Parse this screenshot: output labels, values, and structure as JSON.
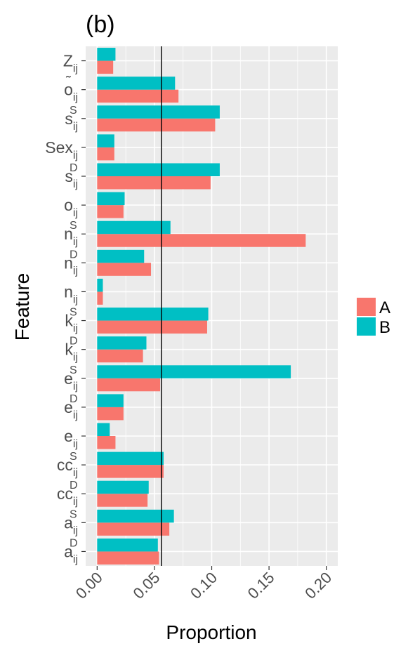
{
  "chart_data": {
    "type": "bar",
    "orientation": "horizontal",
    "title": "(b)",
    "xlabel": "Proportion",
    "ylabel": "Feature",
    "xlim": [
      -0.01,
      0.21
    ],
    "xticks": [
      "0.00",
      "0.05",
      "0.10",
      "0.15",
      "0.20"
    ],
    "reference_line": 0.056,
    "legend_position": "right",
    "grid": true,
    "colors": {
      "A": "#F8766D",
      "B": "#00BFC4",
      "panel": "#EBEBEB",
      "grid": "#ffffff"
    },
    "categories": [
      {
        "base": "Z",
        "sup": "",
        "tilde": false
      },
      {
        "base": "o",
        "sup": "",
        "tilde": true
      },
      {
        "base": "s",
        "sup": "S",
        "tilde": false
      },
      {
        "base": "Sex",
        "sup": "",
        "tilde": false
      },
      {
        "base": "s",
        "sup": "D",
        "tilde": false
      },
      {
        "base": "o",
        "sup": "",
        "tilde": false
      },
      {
        "base": "n",
        "sup": "S",
        "tilde": false
      },
      {
        "base": "n",
        "sup": "D",
        "tilde": false
      },
      {
        "base": "n",
        "sup": "",
        "tilde": false
      },
      {
        "base": "k",
        "sup": "S",
        "tilde": false
      },
      {
        "base": "k",
        "sup": "D",
        "tilde": false
      },
      {
        "base": "e",
        "sup": "S",
        "tilde": false
      },
      {
        "base": "e",
        "sup": "D",
        "tilde": false
      },
      {
        "base": "e",
        "sup": "",
        "tilde": false
      },
      {
        "base": "cc",
        "sup": "S",
        "tilde": false
      },
      {
        "base": "cc",
        "sup": "D",
        "tilde": false
      },
      {
        "base": "a",
        "sup": "S",
        "tilde": false
      },
      {
        "base": "a",
        "sup": "D",
        "tilde": false
      }
    ],
    "label_subscript": "ij",
    "series": [
      {
        "name": "A",
        "values": [
          0.014,
          0.071,
          0.103,
          0.015,
          0.099,
          0.023,
          0.182,
          0.047,
          0.005,
          0.096,
          0.04,
          0.055,
          0.023,
          0.016,
          0.058,
          0.044,
          0.063,
          0.054
        ]
      },
      {
        "name": "B",
        "values": [
          0.016,
          0.068,
          0.107,
          0.015,
          0.107,
          0.024,
          0.064,
          0.041,
          0.005,
          0.097,
          0.043,
          0.169,
          0.023,
          0.011,
          0.058,
          0.045,
          0.067,
          0.053
        ]
      }
    ]
  }
}
